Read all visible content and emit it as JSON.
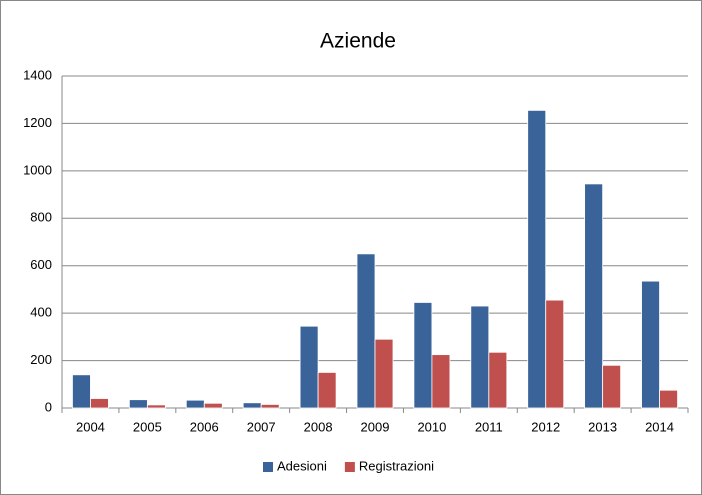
{
  "chart_data": {
    "type": "bar",
    "title": "Aziende",
    "categories": [
      "2004",
      "2005",
      "2006",
      "2007",
      "2008",
      "2009",
      "2010",
      "2011",
      "2012",
      "2013",
      "2014"
    ],
    "series": [
      {
        "name": "Adesioni",
        "color": "#3a6399",
        "values": [
          140,
          35,
          33,
          22,
          345,
          650,
          445,
          430,
          1255,
          945,
          535
        ]
      },
      {
        "name": "Registrazioni",
        "color": "#c0504d",
        "values": [
          40,
          13,
          20,
          15,
          150,
          290,
          225,
          235,
          455,
          180,
          75
        ]
      }
    ],
    "ylim": [
      0,
      1400
    ],
    "yticks": [
      0,
      200,
      400,
      600,
      800,
      1000,
      1200,
      1400
    ],
    "grid": true,
    "legend": "bottom"
  }
}
